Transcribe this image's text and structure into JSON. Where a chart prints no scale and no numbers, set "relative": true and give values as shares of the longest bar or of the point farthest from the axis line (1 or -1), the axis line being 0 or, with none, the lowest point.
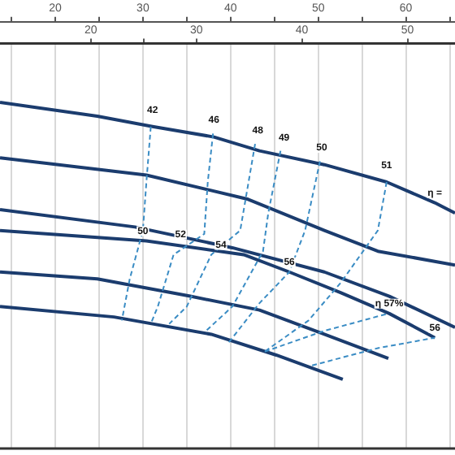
{
  "chart_data": {
    "type": "line",
    "relative": true,
    "marker": "none",
    "grid": "x",
    "legend": false,
    "xlim": [
      13.7,
      65.6
    ],
    "xticks": [
      {
        "value": 15,
        "label": null
      },
      20,
      {
        "value": 25,
        "label": null
      },
      30,
      {
        "value": 35,
        "label": null
      },
      40,
      {
        "value": 45,
        "label": null
      },
      50,
      {
        "value": 55,
        "label": null
      },
      60,
      {
        "value": 65,
        "label": null
      }
    ],
    "x2lim": [
      11.4,
      54.5
    ],
    "x2ticks": [
      20,
      {
        "value": 25,
        "label": null
      },
      30,
      40,
      50
    ],
    "series": [
      {
        "color": "#1b3c6e",
        "line_style": "solid",
        "x": [
          13.7,
          24.8,
          31.1,
          38.1,
          43.3,
          50.7,
          57.8,
          63.3,
          65.6
        ],
        "values": [
          1,
          0.96,
          0.93,
          0.9,
          0.86,
          0.82,
          0.77,
          0.71,
          0.68
        ]
      },
      {
        "color": "#1b3c6e",
        "line_style": "solid",
        "x": [
          13.7,
          30.4,
          42.0,
          50.7,
          56.8,
          65.6
        ],
        "values": [
          0.84,
          0.79,
          0.72,
          0.63,
          0.57,
          0.53
        ]
      },
      {
        "color": "#1b3c6e",
        "line_style": "solid",
        "x": [
          13.7,
          29.1,
          40.2,
          50.7,
          58.1,
          65.6
        ],
        "values": [
          0.69,
          0.64,
          0.58,
          0.51,
          0.44,
          0.35
        ]
      },
      {
        "color": "#1b3c6e",
        "line_style": "solid",
        "x": [
          13.7,
          30.4,
          41.5,
          46.7,
          52.6,
          58.1,
          63.3
        ],
        "values": [
          0.63,
          0.6,
          0.56,
          0.51,
          0.45,
          0.39,
          0.32
        ]
      },
      {
        "color": "#1b3c6e",
        "line_style": "solid",
        "x": [
          13.7,
          24.8,
          35.4,
          43.3,
          50.7,
          58.0
        ],
        "values": [
          0.51,
          0.49,
          0.44,
          0.4,
          0.33,
          0.26
        ]
      },
      {
        "color": "#1b3c6e",
        "line_style": "solid",
        "x": [
          13.7,
          26.7,
          37.8,
          45.2,
          52.8
        ],
        "values": [
          0.41,
          0.38,
          0.33,
          0.27,
          0.2
        ]
      },
      {
        "color": "#3a8cc4",
        "line_style": "dashed",
        "x": [
          30.9,
          30.4,
          30.0,
          28.5,
          27.6
        ],
        "values": [
          0.93,
          0.77,
          0.63,
          0.49,
          0.37
        ]
      },
      {
        "color": "#3a8cc4",
        "line_style": "dashed",
        "x": [
          38.0,
          37.4,
          37.0,
          33.5,
          31.7,
          30.9
        ],
        "values": [
          0.91,
          0.77,
          0.62,
          0.56,
          0.41,
          0.36
        ]
      },
      {
        "color": "#3a8cc4",
        "line_style": "dashed",
        "x": [
          42.8,
          41.1,
          37.8,
          35.0,
          33.0
        ],
        "values": [
          0.88,
          0.63,
          0.56,
          0.41,
          0.36
        ]
      },
      {
        "color": "#3a8cc4",
        "line_style": "dashed",
        "x": [
          45.7,
          44.3,
          43.7,
          40.2,
          37.2
        ],
        "values": [
          0.86,
          0.68,
          0.57,
          0.41,
          0.34
        ]
      },
      {
        "color": "#3a8cc4",
        "line_style": "dashed",
        "x": [
          50.2,
          48.5,
          46.7,
          43.3,
          39.6
        ],
        "values": [
          0.83,
          0.63,
          0.51,
          0.42,
          0.3
        ]
      },
      {
        "color": "#3a8cc4",
        "line_style": "dashed",
        "x": [
          57.8,
          56.8,
          52.6,
          48.9,
          43.9
        ],
        "values": [
          0.77,
          0.63,
          0.48,
          0.37,
          0.28
        ]
      },
      {
        "color": "#3a8cc4",
        "line_style": "dashed",
        "x": [
          43.9,
          50.7,
          58.0
        ],
        "values": [
          0.28,
          0.34,
          0.39
        ]
      },
      {
        "color": "#3a8cc4",
        "line_style": "dashed",
        "x": [
          49.3,
          56.8,
          63.3
        ],
        "values": [
          0.24,
          0.29,
          0.32
        ]
      }
    ],
    "annotations": [
      {
        "text": "42",
        "x": 31.1,
        "y": 0.95
      },
      {
        "text": "46",
        "x": 38.1,
        "y": 0.92
      },
      {
        "text": "48",
        "x": 43.1,
        "y": 0.89
      },
      {
        "text": "49",
        "x": 46.1,
        "y": 0.87
      },
      {
        "text": "50",
        "x": 50.4,
        "y": 0.84
      },
      {
        "text": "51",
        "x": 57.8,
        "y": 0.79
      },
      {
        "text": "η =",
        "x": 63.3,
        "y": 0.71
      },
      {
        "text": "50",
        "x": 30.0,
        "y": 0.6
      },
      {
        "text": "52",
        "x": 34.3,
        "y": 0.59
      },
      {
        "text": "54",
        "x": 38.9,
        "y": 0.56
      },
      {
        "text": "56",
        "x": 46.7,
        "y": 0.51
      },
      {
        "text": "η 57%",
        "x": 58.1,
        "y": 0.39
      },
      {
        "text": "56",
        "x": 63.3,
        "y": 0.32
      }
    ]
  }
}
